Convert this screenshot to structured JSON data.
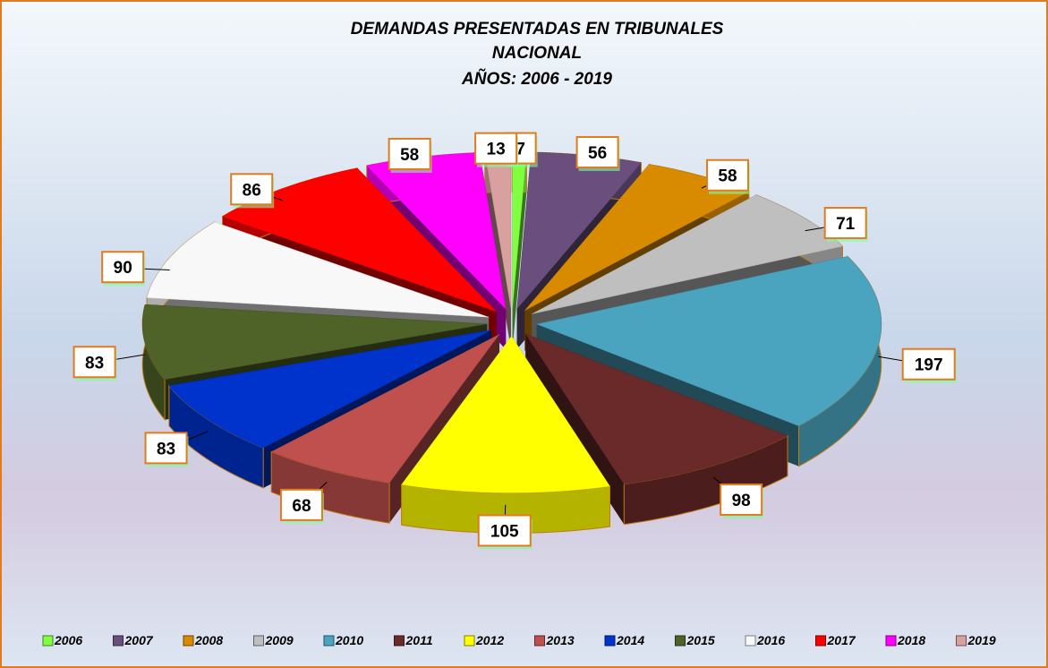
{
  "chart_data": {
    "type": "pie",
    "title_lines": [
      "DEMANDAS PRESENTADAS EN  TRIBUNALES",
      "NACIONAL",
      "AÑOS: 2006 - 2019"
    ],
    "categories": [
      "2006",
      "2007",
      "2008",
      "2009",
      "2010",
      "2011",
      "2012",
      "2013",
      "2014",
      "2015",
      "2016",
      "2017",
      "2018",
      "2019"
    ],
    "values": [
      7,
      56,
      58,
      71,
      197,
      98,
      105,
      68,
      83,
      83,
      90,
      86,
      58,
      13
    ],
    "colors": [
      "#7fff3f",
      "#6a4f7e",
      "#d98b00",
      "#bfbfbf",
      "#4aa3bf",
      "#6b2a2a",
      "#ffff00",
      "#c0504d",
      "#0033cc",
      "#4f6228",
      "#f8f8f8",
      "#ff0000",
      "#ff00ff",
      "#d9a0a0"
    ],
    "legend": "bottom"
  }
}
